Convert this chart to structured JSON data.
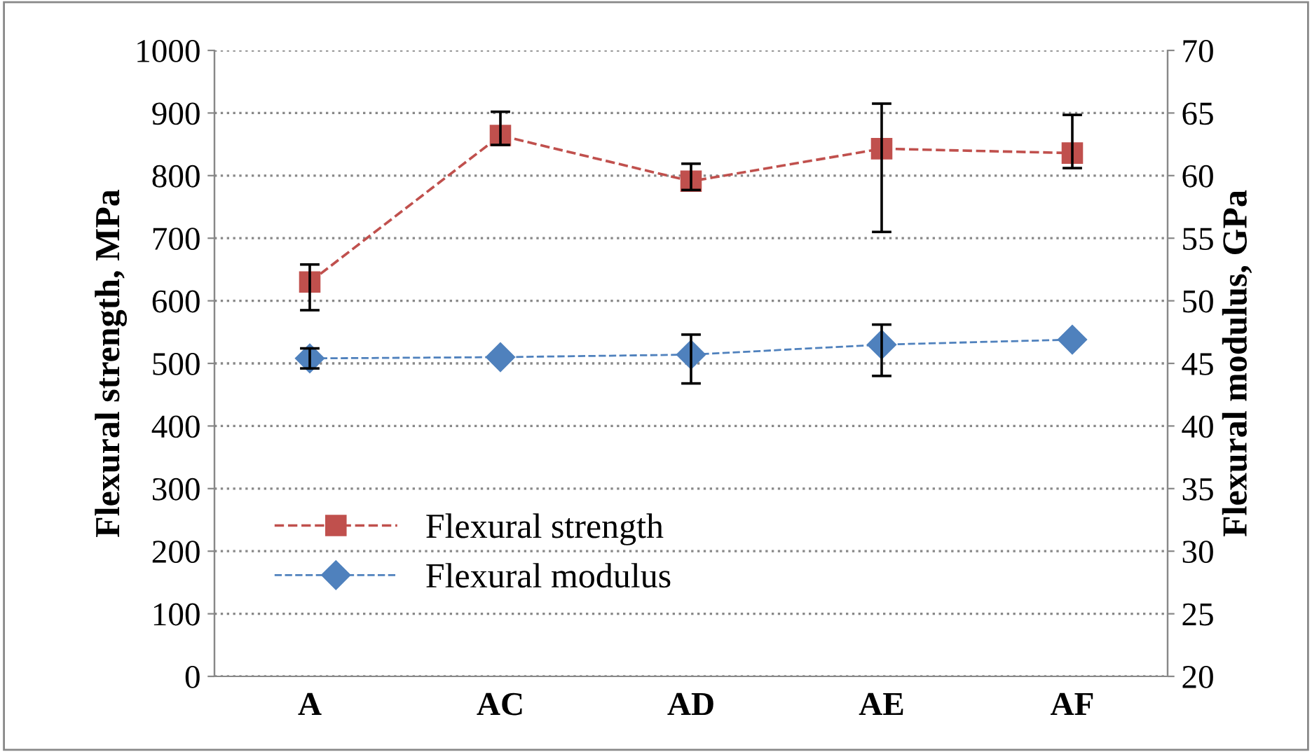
{
  "chart_data": {
    "type": "line",
    "categories": [
      "A",
      "AC",
      "AD",
      "AE",
      "AF"
    ],
    "ylabel": "Flexural strength, MPa",
    "y2label": "Flexural modulus, GPa",
    "ylim": [
      0,
      1000
    ],
    "yticks": [
      0,
      100,
      200,
      300,
      400,
      500,
      600,
      700,
      800,
      900,
      1000
    ],
    "y2lim": [
      20,
      70
    ],
    "y2ticks": [
      20,
      25,
      30,
      35,
      40,
      45,
      50,
      55,
      60,
      65,
      70
    ],
    "grid": "y",
    "legend": "lower left",
    "line_style": "dashed",
    "series": [
      {
        "name": "Flexural strength",
        "color": "#c0504d",
        "marker": "square",
        "values": [
          630,
          864,
          791,
          843,
          836
        ],
        "errors": [
          [
            585,
            658
          ],
          [
            849,
            902
          ],
          [
            777,
            819
          ],
          [
            710,
            915
          ],
          [
            812,
            897
          ]
        ]
      },
      {
        "name": "Flexural modulus",
        "color": "#4f81bd",
        "marker": "diamond",
        "axis": "y2",
        "values": [
          45.4,
          45.5,
          45.7,
          46.5,
          46.9
        ],
        "errors": [
          0.8,
          null,
          [
            43.4,
            47.3
          ],
          [
            44.0,
            48.1
          ],
          null
        ]
      }
    ]
  }
}
